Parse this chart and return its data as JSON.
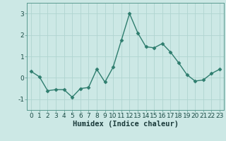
{
  "x": [
    0,
    1,
    2,
    3,
    4,
    5,
    6,
    7,
    8,
    9,
    10,
    11,
    12,
    13,
    14,
    15,
    16,
    17,
    18,
    19,
    20,
    21,
    22,
    23
  ],
  "y": [
    0.3,
    0.05,
    -0.6,
    -0.55,
    -0.55,
    -0.9,
    -0.5,
    -0.45,
    0.4,
    -0.2,
    0.5,
    1.75,
    3.0,
    2.1,
    1.45,
    1.4,
    1.6,
    1.2,
    0.7,
    0.15,
    -0.15,
    -0.1,
    0.2,
    0.4
  ],
  "line_color": "#2e7d6e",
  "marker": "D",
  "marker_size": 2.5,
  "bg_color": "#cce8e5",
  "grid_color": "#b0d4d0",
  "xlabel": "Humidex (Indice chaleur)",
  "ylabel": "",
  "ylim": [
    -1.5,
    3.5
  ],
  "xlim": [
    -0.5,
    23.5
  ],
  "yticks": [
    -1,
    0,
    1,
    2,
    3
  ],
  "xticks": [
    0,
    1,
    2,
    3,
    4,
    5,
    6,
    7,
    8,
    9,
    10,
    11,
    12,
    13,
    14,
    15,
    16,
    17,
    18,
    19,
    20,
    21,
    22,
    23
  ],
  "linewidth": 1.0,
  "tick_fontsize": 6.5,
  "xlabel_fontsize": 7.5
}
